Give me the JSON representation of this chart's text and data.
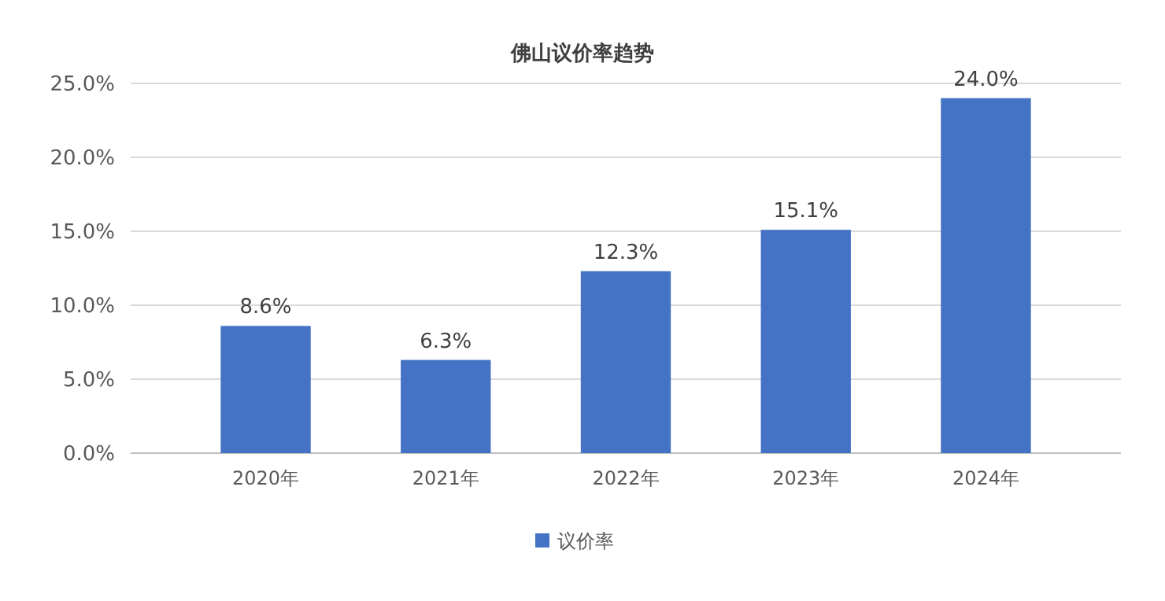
{
  "chart_data": {
    "type": "bar",
    "title": "佛山议价率趋势",
    "categories": [
      "2020年",
      "2021年",
      "2022年",
      "2023年",
      "2024年"
    ],
    "series": [
      {
        "name": "议价率",
        "color": "#4472c4",
        "values": [
          8.6,
          6.3,
          12.3,
          15.1,
          24.0
        ]
      }
    ],
    "value_labels": [
      "8.6%",
      "6.3%",
      "12.3%",
      "15.1%",
      "24.0%"
    ],
    "ylim": [
      0,
      25
    ],
    "yticks": [
      {
        "value": 0,
        "label": "0.0%"
      },
      {
        "value": 5,
        "label": "5.0%"
      },
      {
        "value": 10,
        "label": "10.0%"
      },
      {
        "value": 15,
        "label": "15.0%"
      },
      {
        "value": 20,
        "label": "20.0%"
      },
      {
        "value": 25,
        "label": "25.0%"
      }
    ],
    "grid": "y",
    "legend": "bottom"
  }
}
